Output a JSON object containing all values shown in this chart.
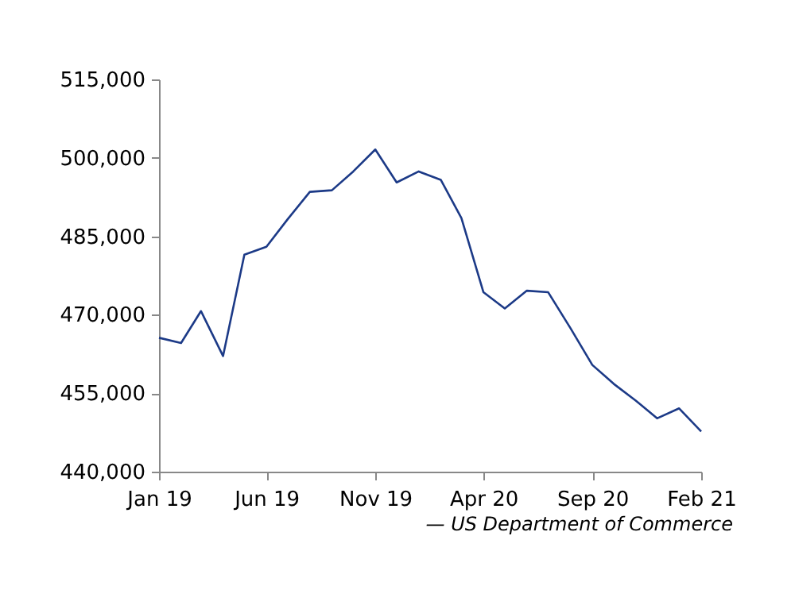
{
  "chart_data": {
    "type": "line",
    "x": [
      "2019-01",
      "2019-02",
      "2019-03",
      "2019-04",
      "2019-05",
      "2019-06",
      "2019-07",
      "2019-08",
      "2019-09",
      "2019-10",
      "2019-11",
      "2019-12",
      "2020-01",
      "2020-02",
      "2020-03",
      "2020-04",
      "2020-05",
      "2020-06",
      "2020-07",
      "2020-08",
      "2020-09",
      "2020-10",
      "2020-11",
      "2020-12",
      "2021-01",
      "2021-02"
    ],
    "series": [
      {
        "color": "#1c3a87",
        "values": [
          465600,
          464600,
          470700,
          462100,
          481500,
          483000,
          488300,
          493500,
          493800,
          497400,
          501600,
          495300,
          497400,
          495800,
          488500,
          474300,
          471200,
          474600,
          474300,
          467500,
          460400,
          456800,
          453600,
          450200,
          452100,
          447700
        ]
      }
    ],
    "xlim": [
      "2019-01",
      "2021-02"
    ],
    "xticks": [
      {
        "value": "2019-01",
        "label": "Jan 19"
      },
      {
        "value": "2019-06",
        "label": "Jun 19"
      },
      {
        "value": "2019-11",
        "label": "Nov 19"
      },
      {
        "value": "2020-04",
        "label": "Apr 20"
      },
      {
        "value": "2020-09",
        "label": "Sep 20"
      },
      {
        "value": "2021-02",
        "label": "Feb 21"
      }
    ],
    "ylim": [
      440000,
      515000
    ],
    "yticks": [
      {
        "value": 440000,
        "label": "440,000"
      },
      {
        "value": 455000,
        "label": "455,000"
      },
      {
        "value": 470000,
        "label": "470,000"
      },
      {
        "value": 485000,
        "label": "485,000"
      },
      {
        "value": 500000,
        "label": "500,000"
      },
      {
        "value": 515000,
        "label": "515,000"
      }
    ],
    "grid": false,
    "legend": false,
    "marker": "none",
    "line_style": "solid",
    "annotations": [
      "— US Department of Commerce"
    ]
  }
}
